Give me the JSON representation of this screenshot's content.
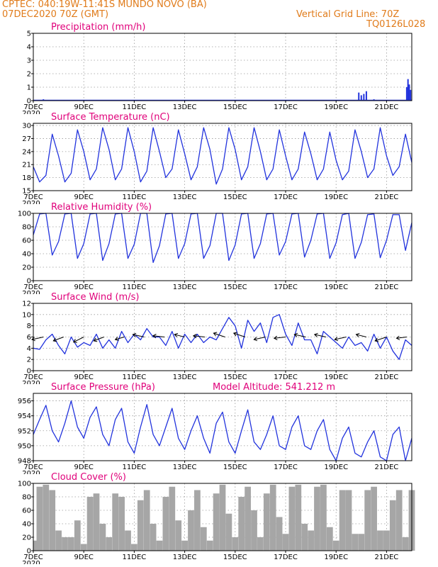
{
  "header": {
    "line1": "CPTEC:  040:19W-11:41S   MUNDO NOVO (BA)",
    "line2": "07DEC2020 70Z (GMT)",
    "grid_line": "Vertical Grid Line: 70Z",
    "model": "TQ0126L028"
  },
  "colors": {
    "header": "#e07b1a",
    "title": "#e0007a",
    "line": "#2233dd",
    "cloud": "#a6a6a6",
    "grid": "#9a9a9a"
  },
  "x_ticks": [
    "7DEC",
    "9DEC",
    "11DEC",
    "13DEC",
    "15DEC",
    "17DEC",
    "19DEC",
    "21DEC"
  ],
  "x_tick_days": [
    0,
    2,
    4,
    6,
    8,
    10,
    12,
    14
  ],
  "x_range_days": [
    0,
    15
  ],
  "year_label": "2020",
  "chart_data": [
    {
      "id": "precip",
      "type": "bar",
      "title": "Precipitation (mm/h)",
      "ylim": [
        0,
        5
      ],
      "yticks": [
        0,
        1,
        2,
        3,
        4,
        5
      ],
      "x_days": [
        0.4,
        12.9,
        13.0,
        13.1,
        13.2,
        13.5,
        14.8,
        14.85,
        14.9,
        14.95
      ],
      "values": [
        0.1,
        0.6,
        0.4,
        0.5,
        0.7,
        0.1,
        1.0,
        1.6,
        1.2,
        0.8
      ]
    },
    {
      "id": "temp",
      "type": "line",
      "title": "Surface Temperature (nC)",
      "ylim": [
        15,
        30.5
      ],
      "yticks": [
        15,
        18,
        21,
        24,
        27,
        30
      ],
      "x_days": [
        0.0,
        0.25,
        0.5,
        0.75,
        1.0,
        1.25,
        1.5,
        1.75,
        2.0,
        2.25,
        2.5,
        2.75,
        3.0,
        3.25,
        3.5,
        3.75,
        4.0,
        4.25,
        4.5,
        4.75,
        5.0,
        5.25,
        5.5,
        5.75,
        6.0,
        6.25,
        6.5,
        6.75,
        7.0,
        7.25,
        7.5,
        7.75,
        8.0,
        8.25,
        8.5,
        8.75,
        9.0,
        9.25,
        9.5,
        9.75,
        10.0,
        10.25,
        10.5,
        10.75,
        11.0,
        11.25,
        11.5,
        11.75,
        12.0,
        12.25,
        12.5,
        12.75,
        13.0,
        13.25,
        13.5,
        13.75,
        14.0,
        14.25,
        14.5,
        14.75,
        15.0
      ],
      "values": [
        20.5,
        17.0,
        18.5,
        28.0,
        23.0,
        17.0,
        19.0,
        29.0,
        24.0,
        17.5,
        20.0,
        29.5,
        24.5,
        17.5,
        20.0,
        29.5,
        24.0,
        17.0,
        19.5,
        29.5,
        24.0,
        18.0,
        20.0,
        29.0,
        23.5,
        17.5,
        20.5,
        29.5,
        24.5,
        16.5,
        20.0,
        29.5,
        24.5,
        17.5,
        20.5,
        29.5,
        24.0,
        17.5,
        20.0,
        29.0,
        23.0,
        17.5,
        20.0,
        28.5,
        23.5,
        17.5,
        20.0,
        28.5,
        22.0,
        17.5,
        19.5,
        29.0,
        24.0,
        18.0,
        20.0,
        29.5,
        23.0,
        18.5,
        20.5,
        28.0,
        21.5
      ]
    },
    {
      "id": "rh",
      "type": "line",
      "title": "Relative Humidity (%)",
      "ylim": [
        0,
        100
      ],
      "yticks": [
        0,
        20,
        40,
        60,
        80,
        100
      ],
      "x_days": [
        0.0,
        0.25,
        0.5,
        0.75,
        1.0,
        1.25,
        1.5,
        1.75,
        2.0,
        2.25,
        2.5,
        2.75,
        3.0,
        3.25,
        3.5,
        3.75,
        4.0,
        4.25,
        4.5,
        4.75,
        5.0,
        5.25,
        5.5,
        5.75,
        6.0,
        6.25,
        6.5,
        6.75,
        7.0,
        7.25,
        7.5,
        7.75,
        8.0,
        8.25,
        8.5,
        8.75,
        9.0,
        9.25,
        9.5,
        9.75,
        10.0,
        10.25,
        10.5,
        10.75,
        11.0,
        11.25,
        11.5,
        11.75,
        12.0,
        12.25,
        12.5,
        12.75,
        13.0,
        13.25,
        13.5,
        13.75,
        14.0,
        14.25,
        14.5,
        14.75,
        15.0
      ],
      "values": [
        68,
        99,
        100,
        38,
        58,
        99,
        100,
        33,
        55,
        99,
        100,
        30,
        55,
        99,
        100,
        33,
        54,
        100,
        100,
        27,
        52,
        99,
        100,
        33,
        55,
        99,
        100,
        33,
        52,
        100,
        100,
        30,
        53,
        99,
        100,
        33,
        55,
        99,
        100,
        38,
        58,
        99,
        100,
        35,
        60,
        99,
        100,
        33,
        56,
        98,
        100,
        33,
        57,
        98,
        99,
        34,
        60,
        98,
        98,
        45,
        86
      ]
    },
    {
      "id": "wind",
      "type": "line",
      "title": "Surface Wind (m/s)",
      "ylim": [
        0,
        12
      ],
      "yticks": [
        0,
        2,
        4,
        6,
        8,
        10,
        12
      ],
      "x_days": [
        0.0,
        0.25,
        0.5,
        0.75,
        1.0,
        1.25,
        1.5,
        1.75,
        2.0,
        2.25,
        2.5,
        2.75,
        3.0,
        3.25,
        3.5,
        3.75,
        4.0,
        4.25,
        4.5,
        4.75,
        5.0,
        5.25,
        5.5,
        5.75,
        6.0,
        6.25,
        6.5,
        6.75,
        7.0,
        7.25,
        7.5,
        7.75,
        8.0,
        8.25,
        8.5,
        8.75,
        9.0,
        9.25,
        9.5,
        9.75,
        10.0,
        10.25,
        10.5,
        10.75,
        11.0,
        11.25,
        11.5,
        11.75,
        12.0,
        12.25,
        12.5,
        12.75,
        13.0,
        13.25,
        13.5,
        13.75,
        14.0,
        14.25,
        14.5,
        14.75,
        15.0
      ],
      "values": [
        4.0,
        3.8,
        5.5,
        6.5,
        4.5,
        3.0,
        6.0,
        4.2,
        5.0,
        4.5,
        6.5,
        4.0,
        5.5,
        4.0,
        7.0,
        5.0,
        6.5,
        5.5,
        7.5,
        6.0,
        6.0,
        4.5,
        7.0,
        4.0,
        6.5,
        5.0,
        6.5,
        5.0,
        6.0,
        5.5,
        7.5,
        9.5,
        8.0,
        4.0,
        9.0,
        7.0,
        8.5,
        5.0,
        9.5,
        10.0,
        6.5,
        4.5,
        8.5,
        5.5,
        5.5,
        3.0,
        7.0,
        6.0,
        5.0,
        4.0,
        6.0,
        4.5,
        5.0,
        3.5,
        6.5,
        4.0,
        6.0,
        3.5,
        2.0,
        5.5,
        4.5
      ],
      "arrows_x_days": [
        0.4,
        1.2,
        2.0,
        2.8,
        3.6,
        4.4,
        5.2,
        6.0,
        6.8,
        7.6,
        8.4,
        9.2,
        10.0,
        10.8,
        11.6,
        12.4,
        13.2,
        14.0,
        14.8
      ],
      "arrows_u": [
        -0.9,
        -0.8,
        -0.8,
        -0.8,
        -0.7,
        -0.9,
        -0.9,
        -0.8,
        -0.9,
        -0.9,
        -0.9,
        -0.9,
        -0.9,
        -0.9,
        -0.9,
        -0.9,
        -0.8,
        -0.9,
        -0.8
      ],
      "arrows_v": [
        -0.2,
        -0.3,
        -0.4,
        -0.3,
        -0.2,
        0.2,
        0.1,
        0.2,
        0.1,
        0.3,
        0.3,
        -0.2,
        -0.1,
        0.2,
        0.2,
        -0.2,
        0.2,
        -0.3,
        -0.1
      ]
    },
    {
      "id": "pres",
      "type": "line",
      "title": "Surface Pressure (hPa)",
      "annotation": "Model Altitude: 541.212 m",
      "ylim": [
        948,
        957
      ],
      "yticks": [
        948,
        950,
        952,
        954,
        956
      ],
      "x_days": [
        0.0,
        0.25,
        0.5,
        0.75,
        1.0,
        1.25,
        1.5,
        1.75,
        2.0,
        2.25,
        2.5,
        2.75,
        3.0,
        3.25,
        3.5,
        3.75,
        4.0,
        4.25,
        4.5,
        4.75,
        5.0,
        5.25,
        5.5,
        5.75,
        6.0,
        6.25,
        6.5,
        6.75,
        7.0,
        7.25,
        7.5,
        7.75,
        8.0,
        8.25,
        8.5,
        8.75,
        9.0,
        9.25,
        9.5,
        9.75,
        10.0,
        10.25,
        10.5,
        10.75,
        11.0,
        11.25,
        11.5,
        11.75,
        12.0,
        12.25,
        12.5,
        12.75,
        13.0,
        13.25,
        13.5,
        13.75,
        14.0,
        14.25,
        14.5,
        14.75,
        15.0
      ],
      "values": [
        951.5,
        953.5,
        955.4,
        952.0,
        950.5,
        953.0,
        956.0,
        952.5,
        951.0,
        953.8,
        955.2,
        951.5,
        950.0,
        953.5,
        955.0,
        950.5,
        949.0,
        952.5,
        955.5,
        951.5,
        950.0,
        952.5,
        955.0,
        951.0,
        949.5,
        952.0,
        954.0,
        951.0,
        949.0,
        953.0,
        954.5,
        950.5,
        949.0,
        952.0,
        954.8,
        950.5,
        949.5,
        951.5,
        954.0,
        950.0,
        949.5,
        952.5,
        954.0,
        950.0,
        949.5,
        952.0,
        953.5,
        949.5,
        948.0,
        951.0,
        952.5,
        949.0,
        948.5,
        950.5,
        952.0,
        948.5,
        948.0,
        951.5,
        952.5,
        948.0,
        951.0
      ]
    },
    {
      "id": "cloud",
      "type": "bar",
      "title": "Cloud Cover (%)",
      "ylim": [
        0,
        100
      ],
      "yticks": [
        0,
        20,
        40,
        60,
        80,
        100
      ],
      "x_days": [
        0.0,
        0.25,
        0.5,
        0.75,
        1.0,
        1.25,
        1.5,
        1.75,
        2.0,
        2.25,
        2.5,
        2.75,
        3.0,
        3.25,
        3.5,
        3.75,
        4.0,
        4.25,
        4.5,
        4.75,
        5.0,
        5.25,
        5.5,
        5.75,
        6.0,
        6.25,
        6.5,
        6.75,
        7.0,
        7.25,
        7.5,
        7.75,
        8.0,
        8.25,
        8.5,
        8.75,
        9.0,
        9.25,
        9.5,
        9.75,
        10.0,
        10.25,
        10.5,
        10.75,
        11.0,
        11.25,
        11.5,
        11.75,
        12.0,
        12.25,
        12.5,
        12.75,
        13.0,
        13.25,
        13.5,
        13.75,
        14.0,
        14.25,
        14.5,
        14.75,
        15.0
      ],
      "values": [
        15,
        95,
        98,
        90,
        30,
        20,
        20,
        45,
        10,
        80,
        85,
        40,
        20,
        85,
        80,
        30,
        10,
        75,
        90,
        40,
        15,
        80,
        95,
        45,
        15,
        60,
        90,
        35,
        15,
        85,
        98,
        55,
        20,
        80,
        95,
        60,
        20,
        85,
        98,
        50,
        25,
        95,
        98,
        40,
        30,
        95,
        98,
        35,
        15,
        90,
        90,
        25,
        25,
        90,
        95,
        30,
        30,
        75,
        90,
        20,
        90
      ]
    }
  ]
}
